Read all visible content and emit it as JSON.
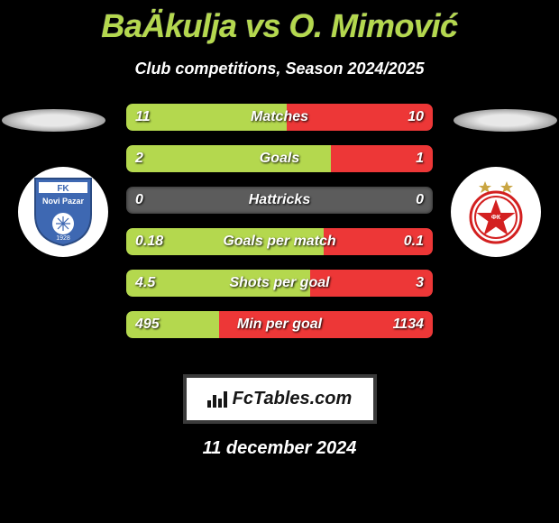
{
  "title": "BaÄkulja vs O. Mimović",
  "subtitle": "Club competitions, Season 2024/2025",
  "date": "11 december 2024",
  "brand": "FcTables.com",
  "colors": {
    "left_bar": "#b4d84e",
    "right_bar": "#ed3737",
    "bar_base": "#5c5c5c",
    "title_color": "#b4d84e",
    "background": "#000000"
  },
  "bars": [
    {
      "label": "Matches",
      "left": "11",
      "right": "10",
      "left_pct": 52.4,
      "right_pct": 47.6
    },
    {
      "label": "Goals",
      "left": "2",
      "right": "1",
      "left_pct": 66.7,
      "right_pct": 33.3
    },
    {
      "label": "Hattricks",
      "left": "0",
      "right": "0",
      "left_pct": 0,
      "right_pct": 0
    },
    {
      "label": "Goals per match",
      "left": "0.18",
      "right": "0.1",
      "left_pct": 64.3,
      "right_pct": 35.7
    },
    {
      "label": "Shots per goal",
      "left": "4.5",
      "right": "3",
      "left_pct": 60.0,
      "right_pct": 40.0
    },
    {
      "label": "Min per goal",
      "left": "495",
      "right": "1134",
      "left_pct": 30.4,
      "right_pct": 69.6
    }
  ],
  "badge_left_label": "FK Novi Pazar",
  "badge_right_label": "FK Crvena Zvezda"
}
